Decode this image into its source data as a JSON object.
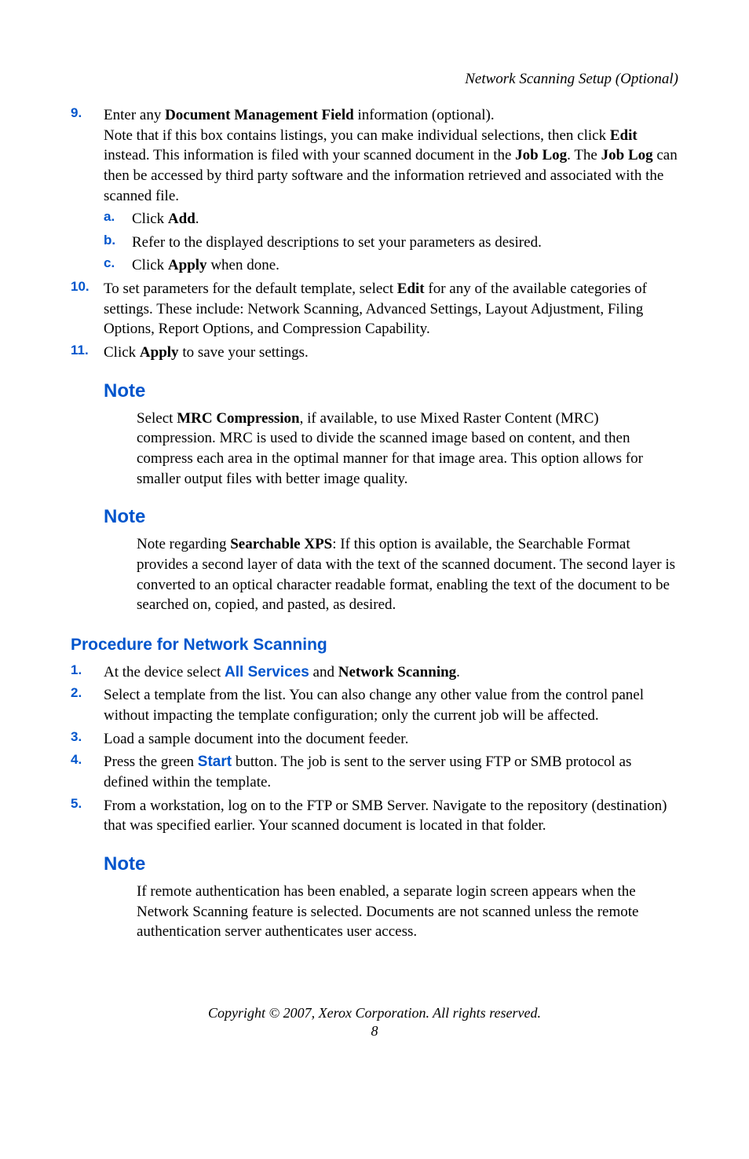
{
  "header": {
    "title": "Network Scanning Setup (Optional)"
  },
  "steps": {
    "s9": {
      "num": "9.",
      "t1": "Enter any ",
      "b1": "Document Management Field",
      "t2": " information (optional).",
      "t3": "Note that if this box contains listings, you can make individual selections, then click ",
      "b2": "Edit",
      "t4": " instead. This information is filed with your scanned document in the ",
      "b3": "Job Log",
      "t5": ". The ",
      "b4": "Job Log",
      "t6": " can then be accessed by third party software and the information retrieved and associated with the scanned file."
    },
    "s9a": {
      "num": "a.",
      "t1": "Click ",
      "b1": "Add",
      "t2": "."
    },
    "s9b": {
      "num": "b.",
      "t1": "Refer to the displayed descriptions to set your parameters as desired."
    },
    "s9c": {
      "num": "c.",
      "t1": "Click ",
      "b1": "Apply",
      "t2": " when done."
    },
    "s10": {
      "num": "10.",
      "t1": "To set parameters for the default template, select ",
      "b1": "Edit",
      "t2": " for any of the available categories of settings. These include: Network Scanning, Advanced Settings, Layout Adjustment, Filing Options, Report Options, and Compression Capability."
    },
    "s11": {
      "num": "11.",
      "t1": "Click ",
      "b1": "Apply",
      "t2": " to save your settings."
    }
  },
  "notes": {
    "n1": {
      "heading": "Note",
      "t1": "Select ",
      "b1": "MRC Compression",
      "t2": ", if available, to use Mixed Raster Content (MRC) compression. MRC is used to divide the scanned image based on content, and then compress each area in the optimal manner for that image area. This option allows for smaller output files with better image quality."
    },
    "n2": {
      "heading": "Note",
      "t1": "Note regarding ",
      "b1": "Searchable XPS",
      "t2": ": If this option is available, the Searchable Format provides a second layer of data with the text of the scanned document. The second layer is converted to an optical character readable format, enabling the text of the document to be searched on, copied, and pasted, as desired."
    },
    "n3": {
      "heading": "Note",
      "t1": "If remote authentication has been enabled, a separate login screen appears when the Network Scanning feature is selected. Documents are not scanned unless the remote authentication server authenticates user access."
    }
  },
  "proc": {
    "heading": "Procedure for Network Scanning",
    "p1": {
      "num": "1.",
      "t1": "At the device select ",
      "u1": "All Services",
      "t2": " and ",
      "b1": "Network Scanning",
      "t3": "."
    },
    "p2": {
      "num": "2.",
      "t1": "Select a template from the list. You can also change any other value from the control panel without impacting the template configuration; only the current job will be affected."
    },
    "p3": {
      "num": "3.",
      "t1": "Load a sample document into the document feeder."
    },
    "p4": {
      "num": "4.",
      "t1": "Press the green ",
      "u1": "Start",
      "t2": " button. The job is sent to the server using FTP or SMB protocol as defined within the template."
    },
    "p5": {
      "num": "5.",
      "t1": "From a workstation, log on to the FTP or SMB Server. Navigate to the repository (destination) that was specified earlier. Your scanned document is located in that folder."
    }
  },
  "footer": {
    "copyright": "Copyright © 2007, Xerox Corporation. All rights reserved.",
    "page": "8"
  }
}
